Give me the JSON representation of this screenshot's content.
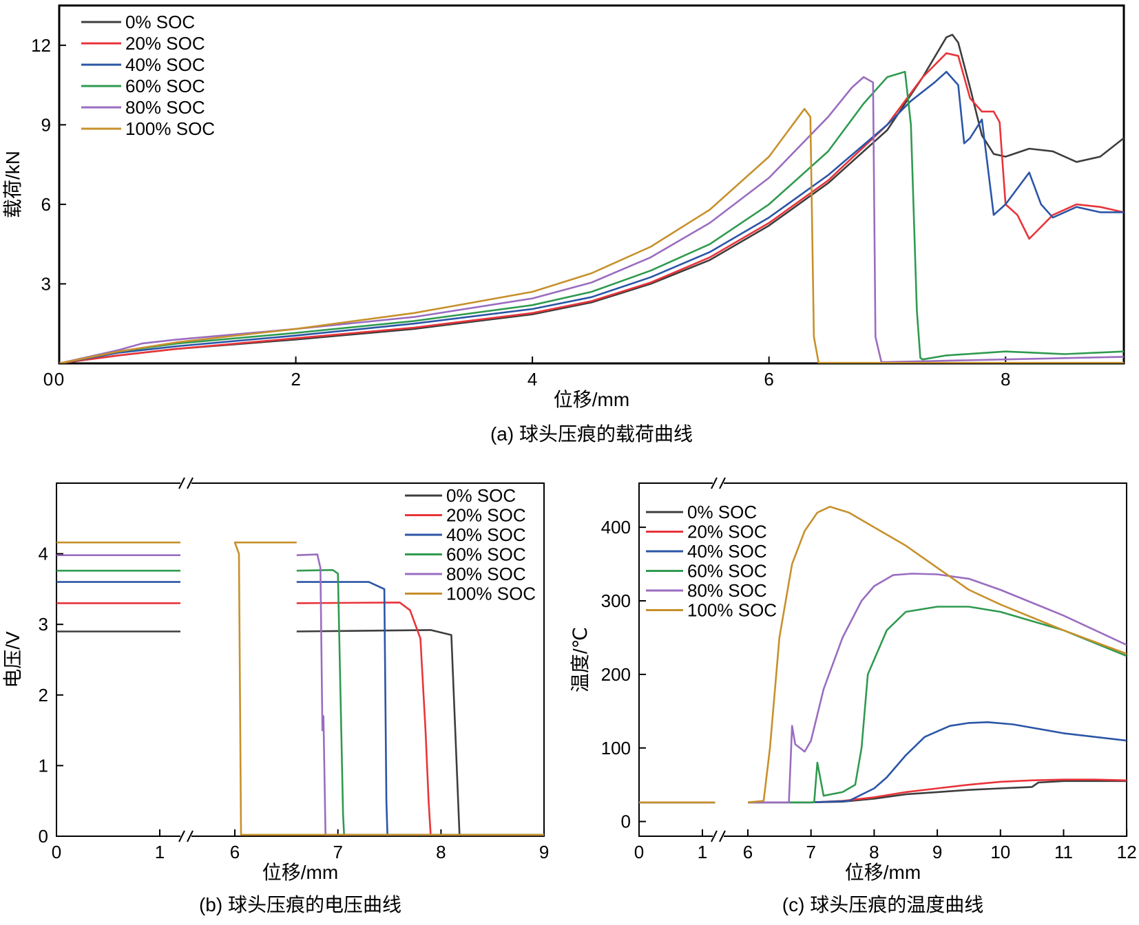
{
  "colors": {
    "0% SOC": "#3d3d3d",
    "20% SOC": "#e8343a",
    "40% SOC": "#2b55a6",
    "60% SOC": "#2f9a4f",
    "80% SOC": "#9a6cc0",
    "100% SOC": "#c7902b"
  },
  "chart_data": [
    {
      "id": "a",
      "type": "line",
      "caption": "(a) 球头压痕的载荷曲线",
      "xlabel": "位移/mm",
      "ylabel": "载荷/kN",
      "xlim": [
        0,
        9
      ],
      "ylim": [
        0,
        13.5
      ],
      "xticks": [
        "0",
        "2",
        "4",
        "6",
        "8"
      ],
      "xtick_values": [
        0,
        2,
        4,
        6,
        8
      ],
      "yticks": [
        "3",
        "6",
        "9",
        "12"
      ],
      "ytick_values": [
        3,
        6,
        9,
        12
      ],
      "grid": false,
      "legend_position": "top-left",
      "series": [
        {
          "name": "0% SOC",
          "x": [
            0,
            0.5,
            1,
            2,
            3,
            4,
            4.5,
            5,
            5.5,
            6,
            6.5,
            7,
            7.3,
            7.5,
            7.55,
            7.6,
            7.7,
            7.8,
            7.9,
            8,
            8.2,
            8.4,
            8.6,
            8.8,
            9
          ],
          "y": [
            0,
            0.3,
            0.55,
            0.9,
            1.3,
            1.85,
            2.3,
            3.0,
            3.9,
            5.2,
            6.8,
            8.8,
            10.8,
            12.3,
            12.4,
            12.1,
            10.4,
            8.6,
            7.9,
            7.8,
            8.1,
            8.0,
            7.6,
            7.8,
            8.5
          ]
        },
        {
          "name": "20% SOC",
          "x": [
            0,
            0.5,
            1,
            2,
            3,
            4,
            4.5,
            5,
            5.5,
            6,
            6.5,
            7,
            7.3,
            7.5,
            7.6,
            7.7,
            7.8,
            7.9,
            7.95,
            8.0,
            8.1,
            8.2,
            8.4,
            8.6,
            8.8,
            9
          ],
          "y": [
            0,
            0.3,
            0.55,
            0.95,
            1.35,
            1.9,
            2.35,
            3.05,
            4.0,
            5.3,
            6.9,
            9.0,
            10.8,
            11.7,
            11.6,
            10.0,
            9.5,
            9.5,
            9.1,
            6.0,
            5.6,
            4.7,
            5.6,
            6.0,
            5.9,
            5.7
          ]
        },
        {
          "name": "40% SOC",
          "x": [
            0,
            0.5,
            1,
            2,
            3,
            4,
            4.5,
            5,
            5.5,
            6,
            6.5,
            7,
            7.2,
            7.4,
            7.5,
            7.6,
            7.65,
            7.7,
            7.8,
            7.9,
            8.0,
            8.2,
            8.3,
            8.4,
            8.6,
            8.8,
            9
          ],
          "y": [
            0,
            0.4,
            0.65,
            1.05,
            1.5,
            2.05,
            2.5,
            3.25,
            4.2,
            5.5,
            7.1,
            9.0,
            9.9,
            10.6,
            11.0,
            10.5,
            8.3,
            8.5,
            9.2,
            5.6,
            6.0,
            7.2,
            6.0,
            5.5,
            5.9,
            5.7,
            5.7
          ]
        },
        {
          "name": "60% SOC",
          "x": [
            0,
            0.5,
            1,
            2,
            3,
            4,
            4.5,
            5,
            5.5,
            6,
            6.5,
            6.8,
            7.0,
            7.15,
            7.2,
            7.25,
            7.28,
            7.3,
            7.5,
            8.0,
            8.5,
            9
          ],
          "y": [
            0,
            0.45,
            0.75,
            1.15,
            1.6,
            2.2,
            2.7,
            3.5,
            4.5,
            6.0,
            8.0,
            9.8,
            10.8,
            11.0,
            9.0,
            2.0,
            0.2,
            0.15,
            0.3,
            0.45,
            0.35,
            0.45
          ]
        },
        {
          "name": "80% SOC",
          "x": [
            0,
            0.5,
            0.7,
            1,
            2,
            3,
            4,
            4.5,
            5,
            5.5,
            6,
            6.5,
            6.7,
            6.8,
            6.88,
            6.9,
            6.95,
            7.0,
            8,
            9
          ],
          "y": [
            0,
            0.5,
            0.75,
            0.9,
            1.3,
            1.75,
            2.45,
            3.05,
            4.0,
            5.3,
            7.0,
            9.3,
            10.4,
            10.8,
            10.6,
            1.0,
            0.05,
            0.05,
            0.15,
            0.25
          ]
        },
        {
          "name": "100% SOC",
          "x": [
            0,
            0.5,
            1,
            2,
            3,
            4,
            4.5,
            5,
            5.5,
            6,
            6.2,
            6.3,
            6.35,
            6.38,
            6.42,
            9
          ],
          "y": [
            0,
            0.45,
            0.8,
            1.3,
            1.9,
            2.7,
            3.4,
            4.4,
            5.8,
            7.8,
            9.0,
            9.6,
            9.3,
            1.0,
            0.02,
            0.02
          ]
        }
      ]
    },
    {
      "id": "b",
      "type": "line",
      "caption": "(b) 球头压痕的电压曲线",
      "xlabel": "位移/mm",
      "ylabel": "电压/V",
      "xticks": [
        "0",
        "1",
        "6",
        "7",
        "8",
        "9"
      ],
      "xtick_values": [
        0,
        1,
        6,
        7,
        8,
        9
      ],
      "axis_break": "between 1 and 6",
      "ylim": [
        0,
        5
      ],
      "yticks": [
        "0",
        "1",
        "2",
        "3",
        "4"
      ],
      "ytick_values": [
        0,
        1,
        2,
        3,
        4
      ],
      "grid": false,
      "legend_position": "top-right",
      "series": [
        {
          "name": "0% SOC",
          "x": [
            0,
            1.2,
            6.6,
            7.9,
            8.1,
            8.18,
            8.2,
            9
          ],
          "y": [
            2.9,
            2.9,
            2.9,
            2.92,
            2.85,
            0.02,
            0.02,
            0.02
          ]
        },
        {
          "name": "20% SOC",
          "x": [
            0,
            1.2,
            6.6,
            7.6,
            7.7,
            7.8,
            7.85,
            7.88,
            7.9,
            9
          ],
          "y": [
            3.3,
            3.3,
            3.3,
            3.31,
            3.2,
            2.8,
            1.5,
            0.5,
            0.02,
            0.02
          ]
        },
        {
          "name": "40% SOC",
          "x": [
            0,
            1.2,
            6.6,
            7.3,
            7.45,
            7.47,
            7.48,
            9
          ],
          "y": [
            3.6,
            3.6,
            3.6,
            3.6,
            3.5,
            0.5,
            0.02,
            0.02
          ]
        },
        {
          "name": "60% SOC",
          "x": [
            0,
            1.2,
            6.6,
            6.95,
            7.0,
            7.05,
            7.06,
            9
          ],
          "y": [
            3.76,
            3.76,
            3.76,
            3.77,
            3.72,
            0.3,
            0.02,
            0.02
          ]
        },
        {
          "name": "80% SOC",
          "x": [
            0,
            1.2,
            6.6,
            6.8,
            6.83,
            6.85,
            6.86,
            6.88,
            9
          ],
          "y": [
            3.98,
            3.98,
            3.98,
            3.99,
            3.8,
            1.5,
            1.7,
            0.02,
            0.02
          ]
        },
        {
          "name": "100% SOC",
          "x": [
            0,
            1.2,
            6.6,
            6.0,
            6.04,
            6.06,
            9
          ],
          "y": [
            4.16,
            4.16,
            4.16,
            4.16,
            4.0,
            0.02,
            0.02
          ]
        }
      ]
    },
    {
      "id": "c",
      "type": "line",
      "caption": "(c) 球头压痕的温度曲线",
      "xlabel": "位移/mm",
      "ylabel": "温度/℃",
      "xticks": [
        "0",
        "1",
        "6",
        "7",
        "8",
        "9",
        "10",
        "11",
        "12"
      ],
      "xtick_values": [
        0,
        1,
        6,
        7,
        8,
        9,
        10,
        11,
        12
      ],
      "axis_break": "between 1 and 6",
      "ylim": [
        -20,
        460
      ],
      "yticks": [
        "0",
        "100",
        "200",
        "300",
        "400"
      ],
      "ytick_values": [
        0,
        100,
        200,
        300,
        400
      ],
      "grid": false,
      "legend_position": "top-left",
      "series": [
        {
          "name": "0% SOC",
          "x": [
            0,
            1.2,
            6,
            7,
            7.5,
            8,
            8.5,
            9,
            9.5,
            10,
            10.5,
            10.6,
            11,
            11.5,
            12
          ],
          "y": [
            26,
            26,
            26,
            26,
            27,
            31,
            37,
            40,
            43,
            45,
            47,
            53,
            55,
            55,
            55
          ]
        },
        {
          "name": "20% SOC",
          "x": [
            0,
            1.2,
            6,
            7,
            7.5,
            8,
            8.5,
            9,
            9.5,
            10,
            10.5,
            11,
            11.5,
            12
          ],
          "y": [
            26,
            26,
            26,
            26,
            28,
            33,
            40,
            45,
            50,
            54,
            56,
            57,
            57,
            56
          ]
        },
        {
          "name": "40% SOC",
          "x": [
            0,
            1.2,
            6,
            7,
            7.6,
            8.0,
            8.2,
            8.5,
            8.8,
            9.2,
            9.5,
            9.8,
            10.2,
            11,
            12
          ],
          "y": [
            26,
            26,
            26,
            26,
            28,
            45,
            60,
            90,
            115,
            130,
            134,
            135,
            132,
            120,
            110
          ]
        },
        {
          "name": "60% SOC",
          "x": [
            0,
            1.2,
            6,
            7.05,
            7.1,
            7.2,
            7.5,
            7.7,
            7.8,
            7.9,
            8.2,
            8.5,
            9.0,
            9.5,
            10,
            11,
            12
          ],
          "y": [
            26,
            26,
            26,
            26,
            80,
            35,
            40,
            50,
            100,
            200,
            260,
            285,
            292,
            292,
            285,
            260,
            225
          ]
        },
        {
          "name": "80% SOC",
          "x": [
            0,
            1.2,
            6,
            6.65,
            6.7,
            6.75,
            6.9,
            7.0,
            7.2,
            7.5,
            7.8,
            8.0,
            8.3,
            8.6,
            9.0,
            9.5,
            10,
            11,
            12
          ],
          "y": [
            26,
            26,
            26,
            26,
            130,
            105,
            95,
            110,
            180,
            250,
            300,
            320,
            335,
            337,
            336,
            330,
            315,
            280,
            240
          ]
        },
        {
          "name": "100% SOC",
          "x": [
            0,
            1.2,
            6,
            6.25,
            6.35,
            6.5,
            6.7,
            6.9,
            7.1,
            7.3,
            7.6,
            8.0,
            8.5,
            9.0,
            9.5,
            10,
            11,
            12
          ],
          "y": [
            26,
            26,
            26,
            28,
            100,
            250,
            350,
            395,
            420,
            428,
            420,
            400,
            375,
            345,
            315,
            295,
            260,
            228
          ]
        }
      ]
    }
  ]
}
